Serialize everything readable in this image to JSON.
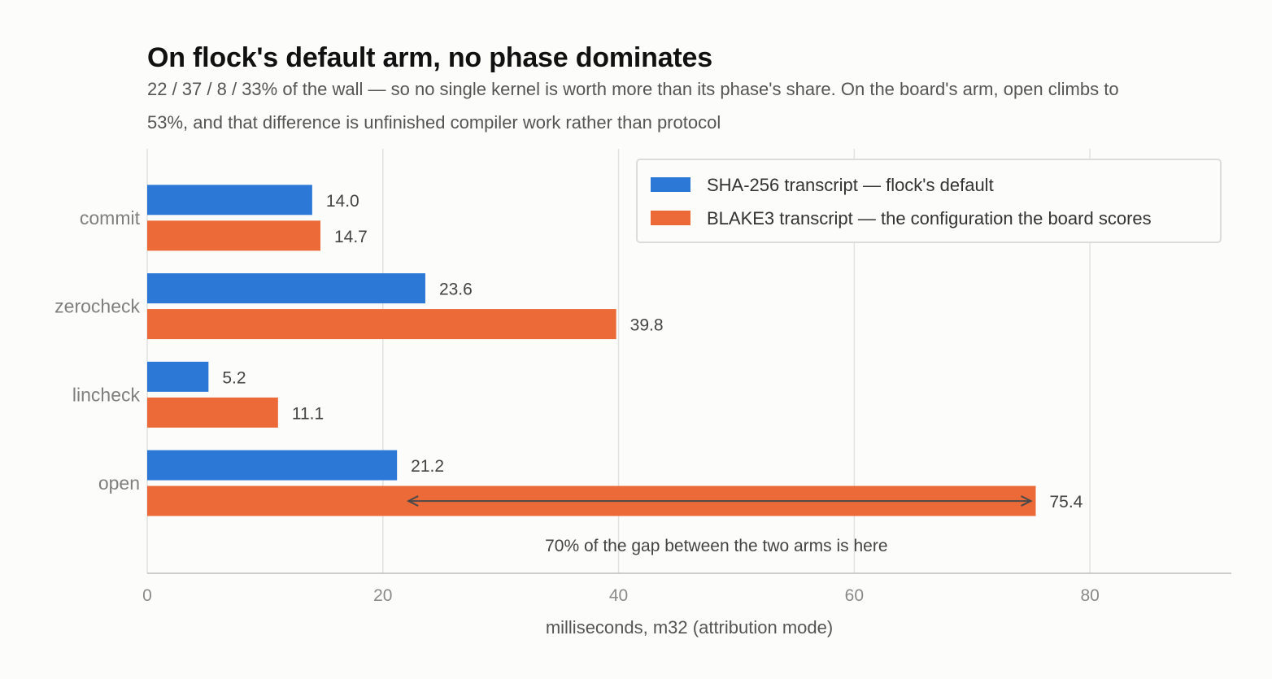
{
  "header": {
    "title": "On flock's default arm, no phase dominates",
    "subtitle": "22 / 37 / 8 / 33% of the wall — so no single kernel is worth more than its phase's share. On the board's arm, open climbs to 53%, and that difference is unfinished compiler work rather than protocol"
  },
  "chart_data": {
    "type": "bar",
    "orientation": "horizontal",
    "title": "On flock's default arm, no phase dominates",
    "subtitle": "22 / 37 / 8 / 33% of the wall — so no single kernel is worth more than its phase's share. On the board's arm, open climbs to 53%, and that difference is unfinished compiler work rather than protocol",
    "categories": [
      "commit",
      "zerocheck",
      "lincheck",
      "open"
    ],
    "series": [
      {
        "name": "SHA-256 transcript — flock's default",
        "color": "#2b78d6",
        "values": [
          14.0,
          23.6,
          5.2,
          21.2
        ],
        "labels": [
          "14.0",
          "23.6",
          "5.2",
          "21.2"
        ]
      },
      {
        "name": "BLAKE3 transcript — the configuration the board scores",
        "color": "#ec6a37",
        "values": [
          14.7,
          39.8,
          11.1,
          75.4
        ],
        "labels": [
          "14.7",
          "39.8",
          "11.1",
          "75.4"
        ]
      }
    ],
    "xlabel": "milliseconds, m32 (attribution mode)",
    "ylabel": "",
    "xlim": [
      0,
      92
    ],
    "xticks": [
      0,
      20,
      40,
      60,
      80
    ],
    "xtick_labels": [
      "0",
      "20",
      "40",
      "60",
      "80"
    ],
    "grid": "vertical",
    "legend_position": "top-right",
    "annotation": {
      "text": "70% of the gap between the two arms is here",
      "category": "open",
      "from": 21.2,
      "to": 75.4,
      "style": "double-arrow"
    }
  }
}
